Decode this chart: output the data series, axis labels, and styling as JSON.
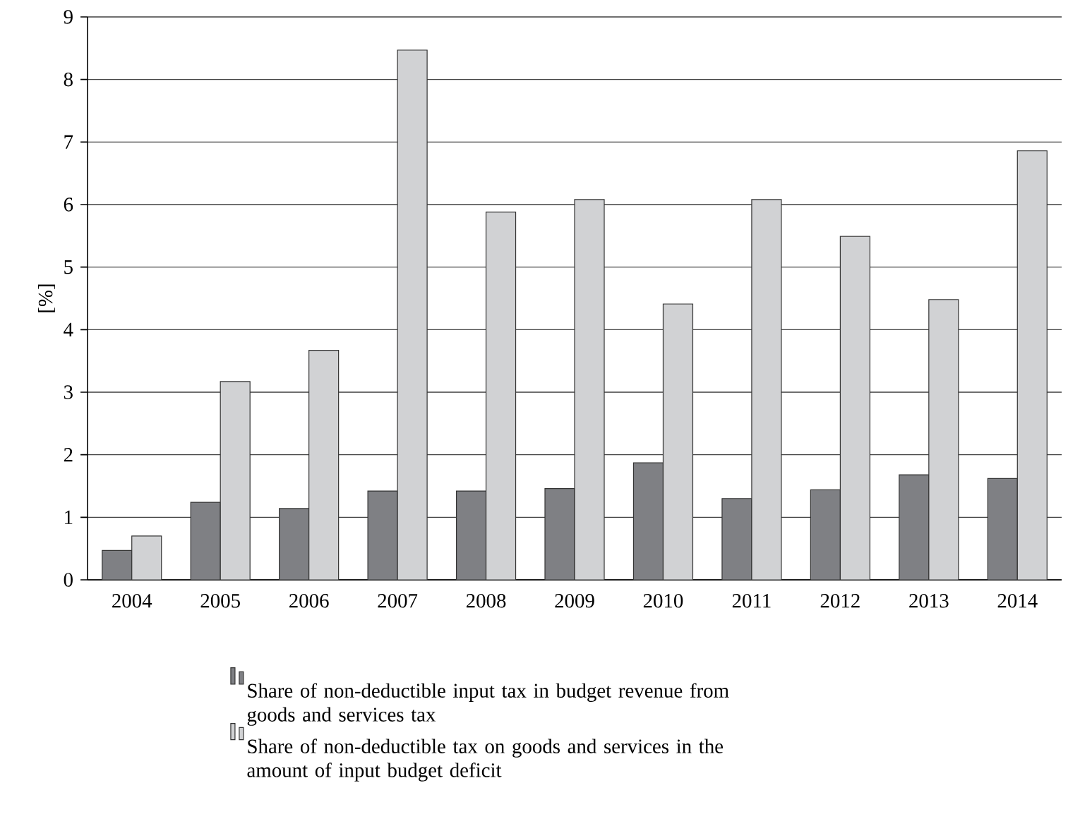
{
  "chart_data": {
    "type": "bar",
    "ylabel": "[%]",
    "categories": [
      "2004",
      "2005",
      "2006",
      "2007",
      "2008",
      "2009",
      "2010",
      "2011",
      "2012",
      "2013",
      "2014"
    ],
    "series": [
      {
        "name": "Share of non-deductible input tax in budget revenue from goods and services tax",
        "color": "#7f8084",
        "values": [
          0.47,
          1.24,
          1.14,
          1.42,
          1.42,
          1.46,
          1.87,
          1.3,
          1.44,
          1.68,
          1.62
        ]
      },
      {
        "name": "Share of non-deductible tax on goods and services in the amount of input budget deficit",
        "color": "#d1d2d4",
        "values": [
          0.7,
          3.17,
          3.67,
          8.47,
          5.88,
          6.08,
          4.41,
          6.08,
          5.49,
          4.48,
          6.86
        ]
      }
    ],
    "ylim": [
      0,
      9
    ],
    "yticks": [
      0,
      1,
      2,
      3,
      4,
      5,
      6,
      7,
      8,
      9
    ],
    "grid": "y",
    "legend": "bottom"
  }
}
